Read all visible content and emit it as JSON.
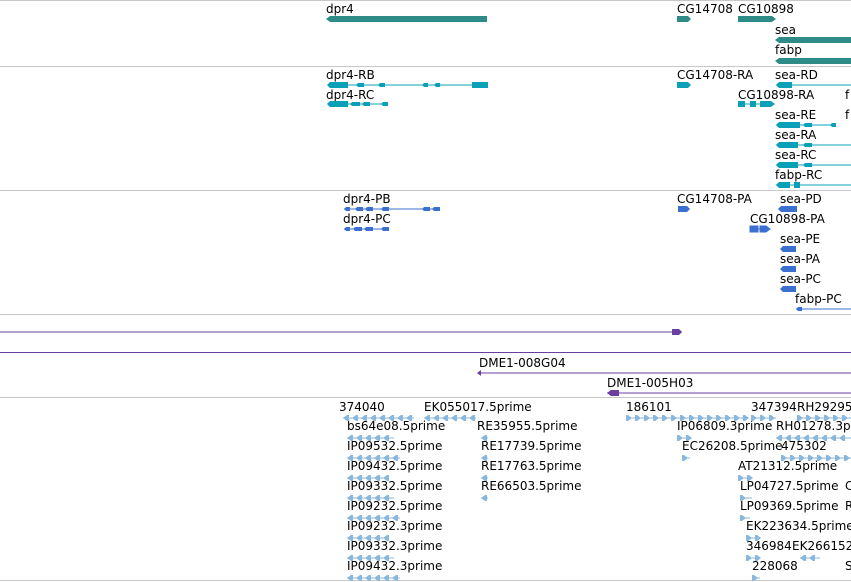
{
  "colors": {
    "gene": "#2e8b87",
    "transcript_cyan": "#0aa0b8",
    "transcript_blue": "#3b6fd0",
    "scaffold_purple": "#6a3fa0",
    "est_light": "#8ab7dc",
    "divider": "#c8c8c8"
  },
  "gene_track": {
    "labels": [
      "dpr4",
      "CG14708",
      "CG10898",
      "sea",
      "fabp"
    ]
  },
  "transcript_track_a": {
    "labels": [
      "dpr4-RB",
      "dpr4-RC",
      "CG14708-RA",
      "sea-RD",
      "CG10898-RA",
      "sea-RE",
      "sea-RA",
      "sea-RC",
      "fabp-RC",
      "f",
      "f"
    ]
  },
  "transcript_track_b": {
    "labels": [
      "dpr4-PB",
      "dpr4-PC",
      "CG14708-PA",
      "sea-PD",
      "CG10898-PA",
      "sea-PE",
      "sea-PA",
      "sea-PC",
      "fabp-PC"
    ]
  },
  "clone_track": {
    "labels": [
      "DME1-008G04",
      "DME1-005H03"
    ]
  },
  "est_track": {
    "labels": [
      "374040",
      "EK055017.5prime",
      "186101",
      "347394",
      "RH29295",
      "bs64e08.5prime",
      "RE35955.5prime",
      "IP06809.3prime",
      "RH01278.3p",
      "IP09532.5prime",
      "RE17739.5prime",
      "EC26208.5prime",
      "475302",
      "IP09432.5prime",
      "RE17763.5prime",
      "AT21312.5prime",
      "IP09332.5prime",
      "RE66503.5prime",
      "LP04727.5prime",
      "C",
      "IP09232.5prime",
      "LP09369.5prime",
      "R",
      "IP09232.3prime",
      "EK223634.5prime",
      "IP09332.3prime",
      "346984",
      "EK266152",
      "IP09432.3prime",
      "228068",
      "S"
    ]
  }
}
